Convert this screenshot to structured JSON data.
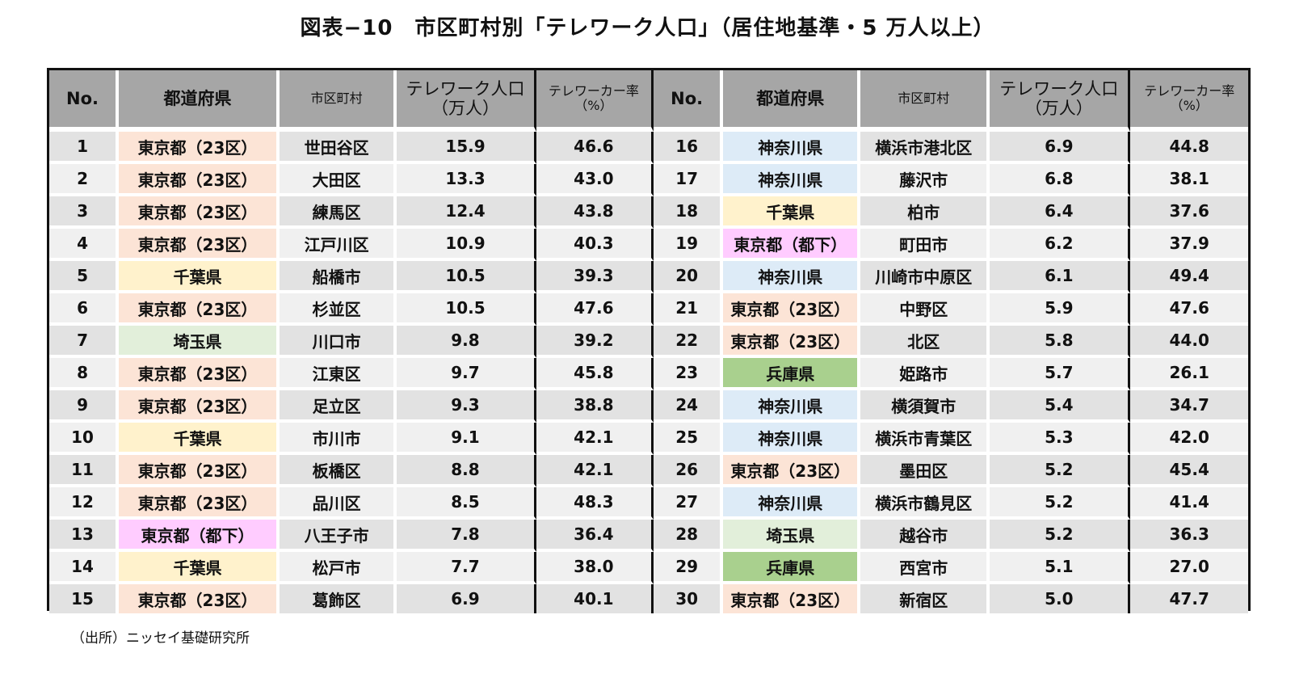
{
  "title": "図表−10　市区町村別「テレワーク人口」（居住地基準・5 万人以上）",
  "headers": {
    "no": "No.",
    "prefecture": "都道府県",
    "municipality": "市区町村",
    "pop_line1": "テレワーク人口",
    "pop_line2": "（万人）",
    "rate_line1": "テレワーカー率",
    "rate_line2": "（%）"
  },
  "pref_colors": {
    "東京都(23区)": "#fce4d6",
    "東京都(都下)": "#ffccff",
    "千葉県": "#fff2cc",
    "埼玉県": "#e2efda",
    "神奈川県": "#ddebf7",
    "兵庫県": "#a9d08e"
  },
  "rows_left": [
    {
      "no": "1",
      "pref": "東京都(23区)",
      "city": "世田谷区",
      "pop": "15.9",
      "rate": "46.6"
    },
    {
      "no": "2",
      "pref": "東京都(23区)",
      "city": "大田区",
      "pop": "13.3",
      "rate": "43.0"
    },
    {
      "no": "3",
      "pref": "東京都(23区)",
      "city": "練馬区",
      "pop": "12.4",
      "rate": "43.8"
    },
    {
      "no": "4",
      "pref": "東京都(23区)",
      "city": "江戸川区",
      "pop": "10.9",
      "rate": "40.3"
    },
    {
      "no": "5",
      "pref": "千葉県",
      "city": "船橋市",
      "pop": "10.5",
      "rate": "39.3"
    },
    {
      "no": "6",
      "pref": "東京都(23区)",
      "city": "杉並区",
      "pop": "10.5",
      "rate": "47.6"
    },
    {
      "no": "7",
      "pref": "埼玉県",
      "city": "川口市",
      "pop": "9.8",
      "rate": "39.2"
    },
    {
      "no": "8",
      "pref": "東京都(23区)",
      "city": "江東区",
      "pop": "9.7",
      "rate": "45.8"
    },
    {
      "no": "9",
      "pref": "東京都(23区)",
      "city": "足立区",
      "pop": "9.3",
      "rate": "38.8"
    },
    {
      "no": "10",
      "pref": "千葉県",
      "city": "市川市",
      "pop": "9.1",
      "rate": "42.1"
    },
    {
      "no": "11",
      "pref": "東京都(23区)",
      "city": "板橋区",
      "pop": "8.8",
      "rate": "42.1"
    },
    {
      "no": "12",
      "pref": "東京都(23区)",
      "city": "品川区",
      "pop": "8.5",
      "rate": "48.3"
    },
    {
      "no": "13",
      "pref": "東京都(都下)",
      "city": "八王子市",
      "pop": "7.8",
      "rate": "36.4"
    },
    {
      "no": "14",
      "pref": "千葉県",
      "city": "松戸市",
      "pop": "7.7",
      "rate": "38.0"
    },
    {
      "no": "15",
      "pref": "東京都(23区)",
      "city": "葛飾区",
      "pop": "6.9",
      "rate": "40.1"
    }
  ],
  "rows_right": [
    {
      "no": "16",
      "pref": "神奈川県",
      "city": "横浜市港北区",
      "pop": "6.9",
      "rate": "44.8"
    },
    {
      "no": "17",
      "pref": "神奈川県",
      "city": "藤沢市",
      "pop": "6.8",
      "rate": "38.1"
    },
    {
      "no": "18",
      "pref": "千葉県",
      "city": "柏市",
      "pop": "6.4",
      "rate": "37.6"
    },
    {
      "no": "19",
      "pref": "東京都(都下)",
      "city": "町田市",
      "pop": "6.2",
      "rate": "37.9"
    },
    {
      "no": "20",
      "pref": "神奈川県",
      "city": "川崎市中原区",
      "pop": "6.1",
      "rate": "49.4"
    },
    {
      "no": "21",
      "pref": "東京都(23区)",
      "city": "中野区",
      "pop": "5.9",
      "rate": "47.6"
    },
    {
      "no": "22",
      "pref": "東京都(23区)",
      "city": "北区",
      "pop": "5.8",
      "rate": "44.0"
    },
    {
      "no": "23",
      "pref": "兵庫県",
      "city": "姫路市",
      "pop": "5.7",
      "rate": "26.1"
    },
    {
      "no": "24",
      "pref": "神奈川県",
      "city": "横須賀市",
      "pop": "5.4",
      "rate": "34.7"
    },
    {
      "no": "25",
      "pref": "神奈川県",
      "city": "横浜市青葉区",
      "pop": "5.3",
      "rate": "42.0"
    },
    {
      "no": "26",
      "pref": "東京都(23区)",
      "city": "墨田区",
      "pop": "5.2",
      "rate": "45.4"
    },
    {
      "no": "27",
      "pref": "神奈川県",
      "city": "横浜市鶴見区",
      "pop": "5.2",
      "rate": "41.4"
    },
    {
      "no": "28",
      "pref": "埼玉県",
      "city": "越谷市",
      "pop": "5.2",
      "rate": "36.3"
    },
    {
      "no": "29",
      "pref": "兵庫県",
      "city": "西宮市",
      "pop": "5.1",
      "rate": "27.0"
    },
    {
      "no": "30",
      "pref": "東京都(23区)",
      "city": "新宿区",
      "pop": "5.0",
      "rate": "47.7"
    }
  ],
  "source": "（出所）ニッセイ基礎研究所"
}
